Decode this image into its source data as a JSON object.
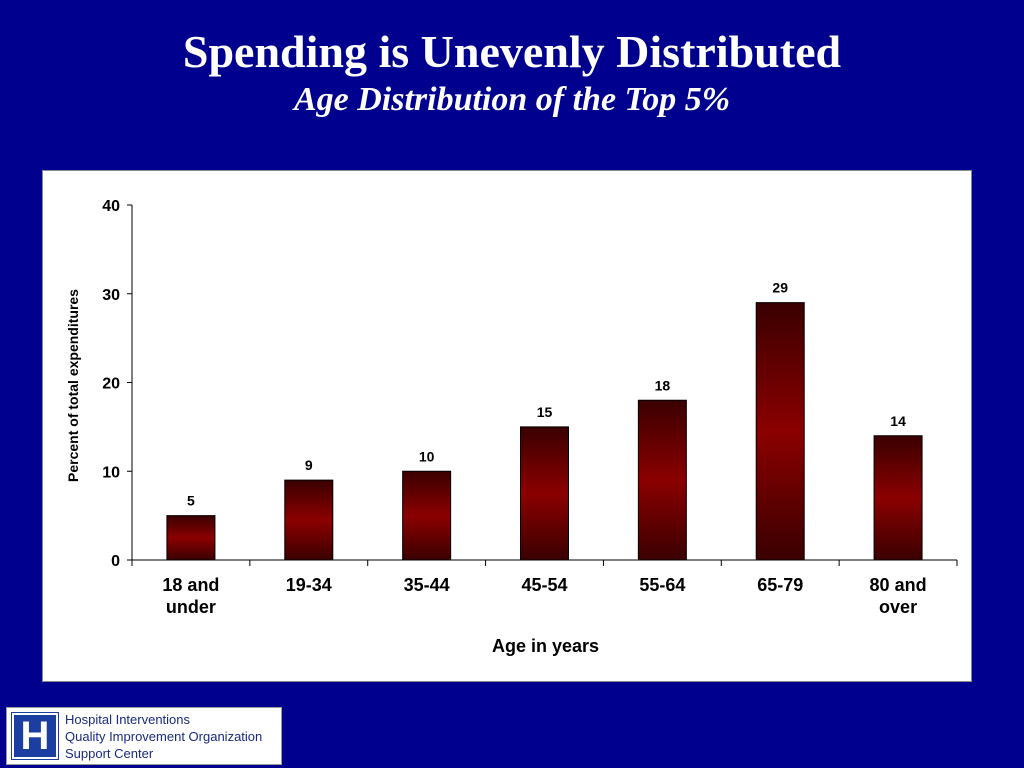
{
  "slide": {
    "title": "Spending is Unevenly Distributed",
    "subtitle": "Age Distribution of the Top 5%"
  },
  "chart_data": {
    "type": "bar",
    "categories": [
      [
        "18 and",
        "under"
      ],
      [
        "19-34"
      ],
      [
        "35-44"
      ],
      [
        "45-54"
      ],
      [
        "55-64"
      ],
      [
        "65-79"
      ],
      [
        "80 and",
        "over"
      ]
    ],
    "values": [
      5,
      9,
      10,
      15,
      18,
      29,
      14
    ],
    "data_labels": [
      "5",
      "9",
      "10",
      "15",
      "18",
      "29",
      "14"
    ],
    "xlabel": "Age in years",
    "ylabel": "Percent of total expenditures",
    "ylim": [
      0,
      40
    ],
    "yticks": [
      0,
      10,
      20,
      30,
      40
    ],
    "grid": false,
    "bar_color": "#8b0000",
    "bar_color_dark": "#3a0000"
  },
  "footer": {
    "logo": {
      "mark": "H",
      "lines": [
        "Hospital Interventions",
        "Quality Improvement Organization",
        "Support Center"
      ]
    }
  },
  "colors": {
    "background": "#00008e",
    "title": "#ffffff",
    "logo_blue": "#1a3fa0"
  }
}
